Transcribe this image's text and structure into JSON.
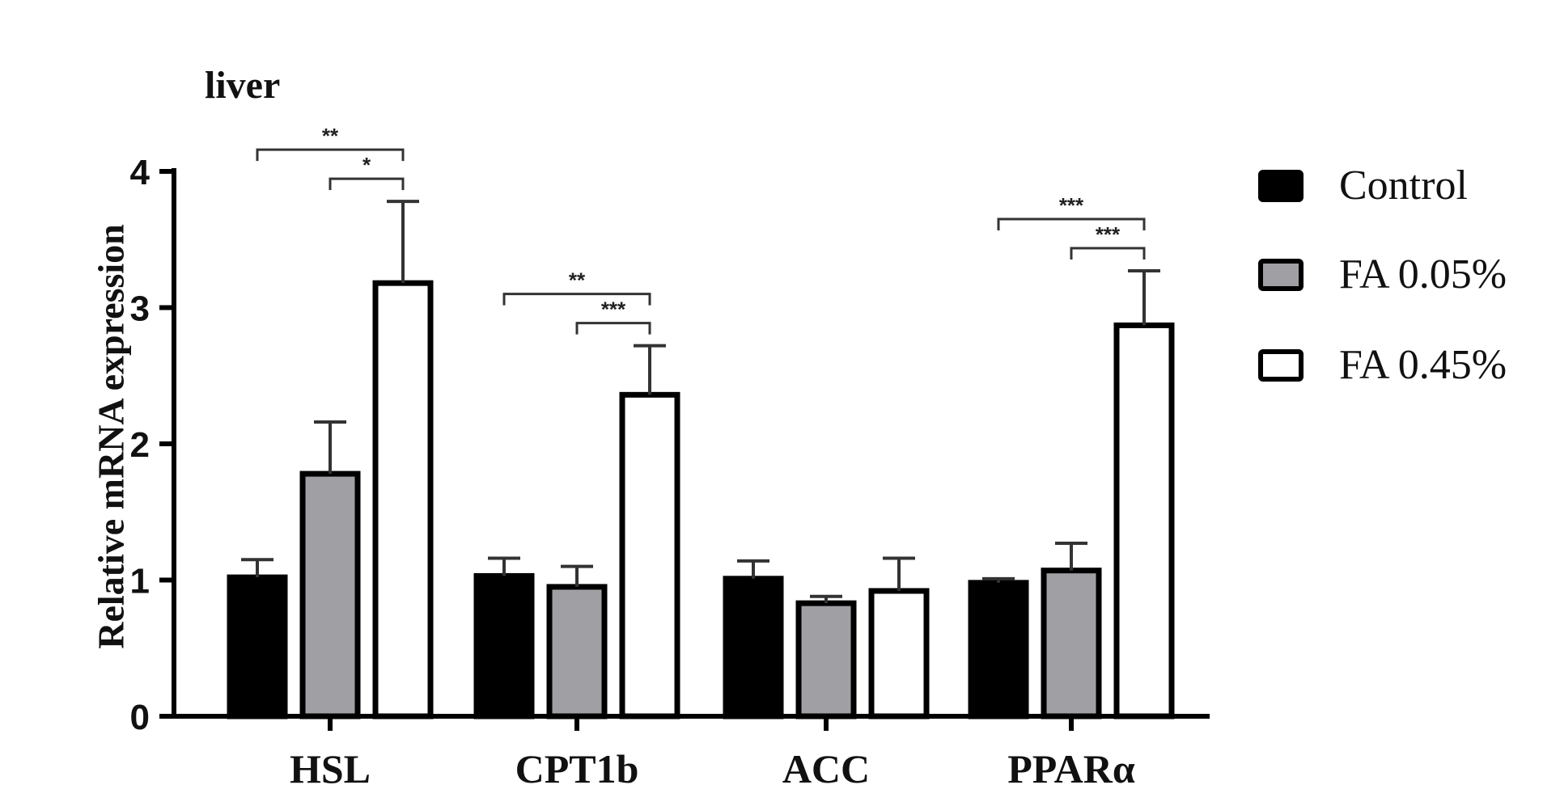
{
  "chart_data": {
    "type": "bar",
    "title": "liver",
    "ylabel": "Relative mRNA expression",
    "xlabel": "",
    "ylim": [
      0,
      4
    ],
    "yticks": [
      0,
      1,
      2,
      3,
      4
    ],
    "categories": [
      "HSL",
      "CPT1b",
      "ACC",
      "PPARα"
    ],
    "series": [
      {
        "name": "Control",
        "color": "#000000",
        "values": [
          1.02,
          1.03,
          1.01,
          0.98
        ],
        "errors": [
          0.13,
          0.13,
          0.13,
          0.03
        ]
      },
      {
        "name": "FA 0.05%",
        "color": "#a0a0a4",
        "values": [
          1.78,
          0.95,
          0.83,
          1.07
        ],
        "errors": [
          0.38,
          0.15,
          0.05,
          0.2
        ]
      },
      {
        "name": "FA 0.45%",
        "color": "#ffffff",
        "values": [
          3.18,
          2.36,
          0.92,
          2.87
        ],
        "errors": [
          0.6,
          0.36,
          0.24,
          0.4
        ]
      }
    ],
    "significance": [
      {
        "category": "HSL",
        "from_series": 0,
        "to_series": 2,
        "label": "**",
        "level": 1
      },
      {
        "category": "HSL",
        "from_series": 1,
        "to_series": 2,
        "label": "*",
        "level": 0
      },
      {
        "category": "CPT1b",
        "from_series": 0,
        "to_series": 2,
        "label": "**",
        "level": 1
      },
      {
        "category": "CPT1b",
        "from_series": 1,
        "to_series": 2,
        "label": "***",
        "level": 0
      },
      {
        "category": "PPARα",
        "from_series": 0,
        "to_series": 2,
        "label": "***",
        "level": 1
      },
      {
        "category": "PPARα",
        "from_series": 1,
        "to_series": 2,
        "label": "***",
        "level": 0
      }
    ],
    "legend_position": "right",
    "grid": false
  }
}
